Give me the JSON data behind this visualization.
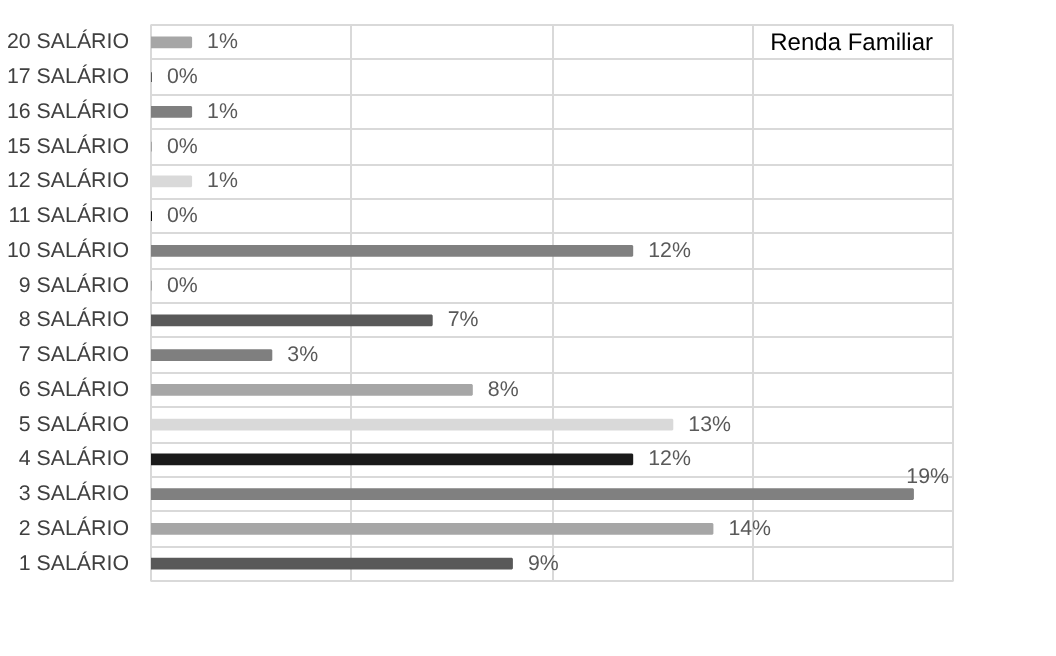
{
  "chart_data": {
    "type": "bar",
    "orientation": "horizontal",
    "title": "Renda Familiar",
    "categories": [
      "20 SALÁRIO",
      "17 SALÁRIO",
      "16 SALÁRIO",
      "15 SALÁRIO",
      "12 SALÁRIO",
      "11 SALÁRIO",
      "10 SALÁRIO",
      "9 SALÁRIO",
      "8 SALÁRIO",
      "7 SALÁRIO",
      "6 SALÁRIO",
      "5 SALÁRIO",
      "4 SALÁRIO",
      "3 SALÁRIO",
      "2 SALÁRIO",
      "1 SALÁRIO"
    ],
    "values": [
      1,
      0,
      1,
      0,
      1,
      0,
      12,
      0,
      7,
      3,
      8,
      13,
      12,
      19,
      14,
      9
    ],
    "value_labels": [
      "1%",
      "0%",
      "1%",
      "0%",
      "1%",
      "0%",
      "12%",
      "0%",
      "7%",
      "3%",
      "8%",
      "13%",
      "12%",
      "19%",
      "14%",
      "9%"
    ],
    "colors": [
      "#a6a6a6",
      "#595959",
      "#7f7f7f",
      "#a6a6a6",
      "#d9d9d9",
      "#0d0d0d",
      "#808080",
      "#a6a6a6",
      "#595959",
      "#7f7f7f",
      "#a6a6a6",
      "#d9d9d9",
      "#1a1a1a",
      "#808080",
      "#a6a6a6",
      "#595959"
    ],
    "xlim": [
      0,
      20
    ],
    "xticks": [
      {
        "value": 0,
        "label": null
      },
      {
        "value": 5,
        "label": null
      },
      {
        "value": 10,
        "label": null
      },
      {
        "value": 15,
        "label": null
      },
      {
        "value": 20,
        "label": null
      }
    ],
    "grid": true,
    "tick_labels": "y"
  }
}
